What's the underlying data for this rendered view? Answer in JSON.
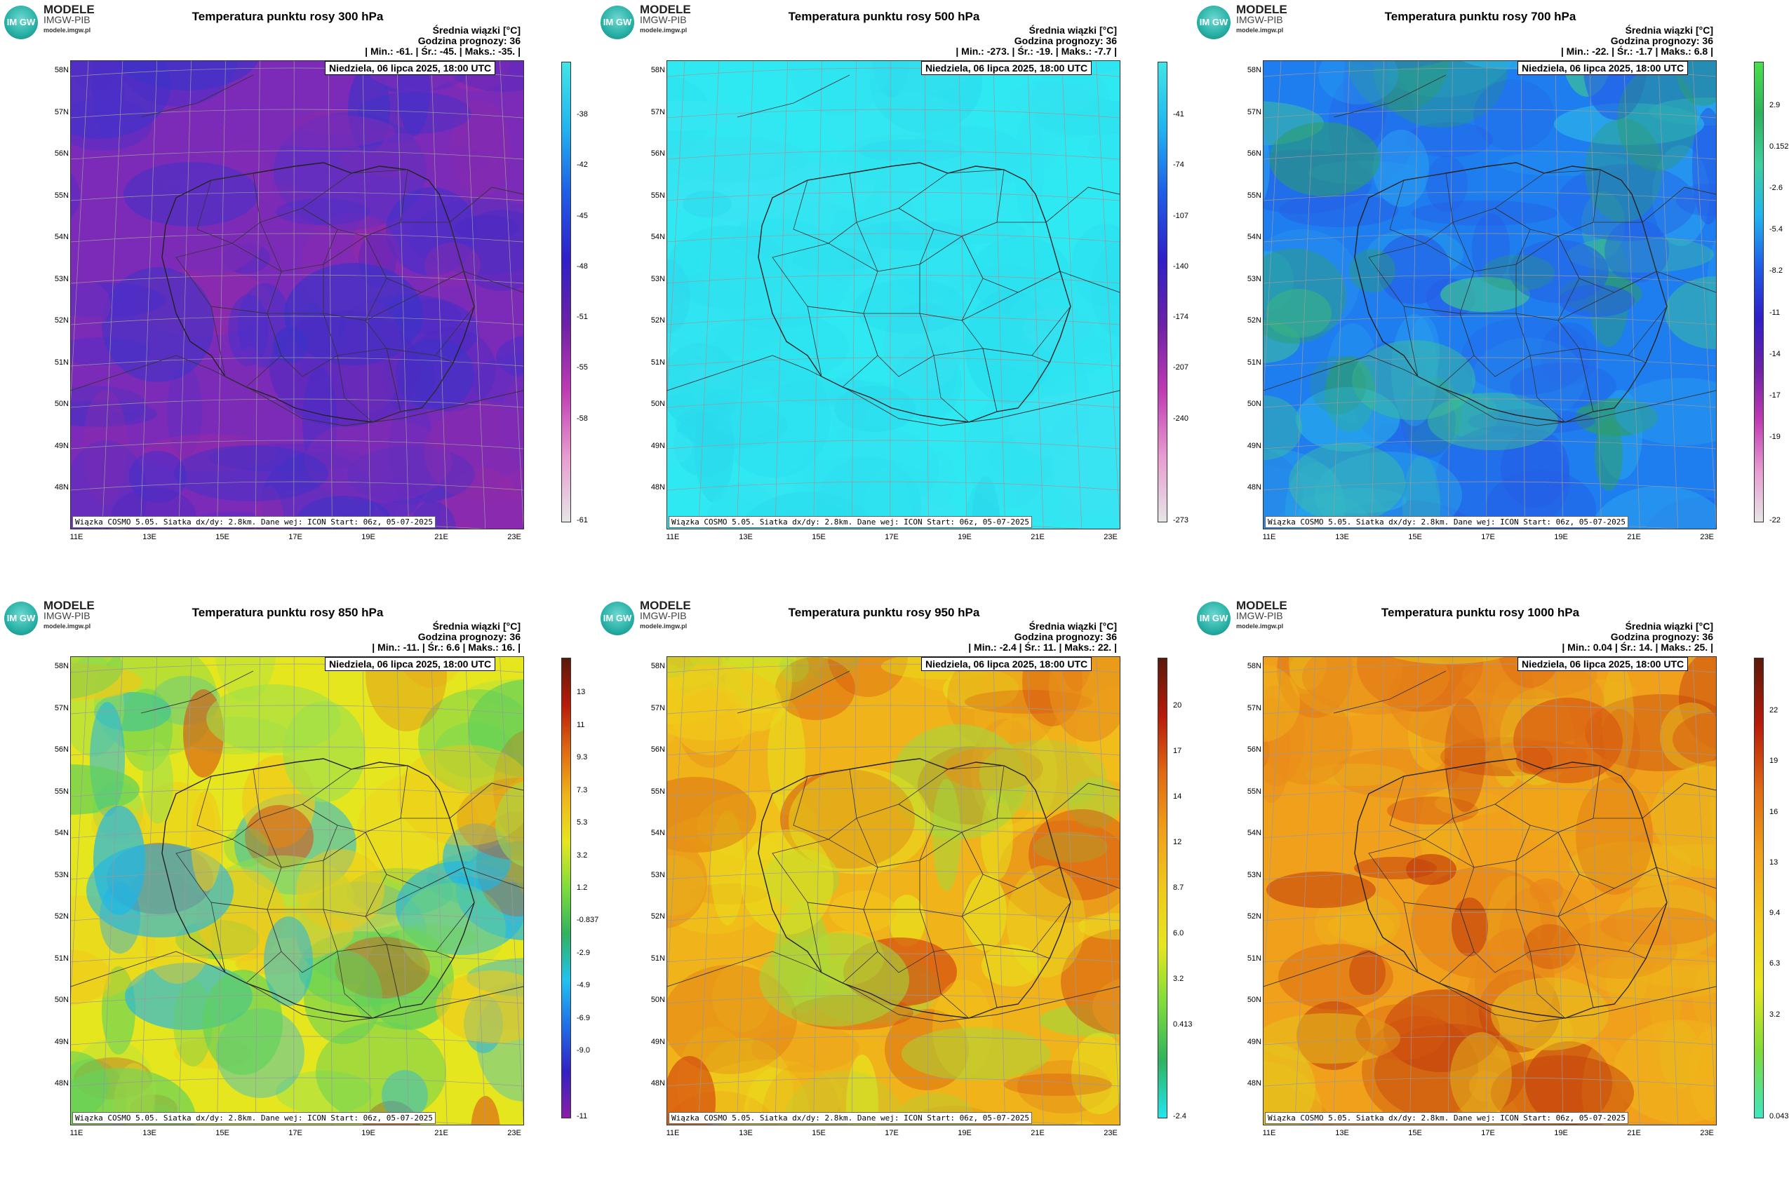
{
  "logo": {
    "line1": "MODELE",
    "line2": "IMGW-PIB",
    "line3": "modele.imgw.pl",
    "badge": "IM GW"
  },
  "common": {
    "info_line1": "Średnia wiązki [°C]",
    "info_line2": "Godzina prognozy: 36",
    "date": "Niedziela, 06 lipca 2025, 18:00 UTC",
    "footer": "Wiązka COSMO 5.05. Siatka dx/dy: 2.8km. Dane wej: ICON Start: 06z, 05-07-2025",
    "lat_labels": [
      "58N",
      "57N",
      "56N",
      "55N",
      "54N",
      "53N",
      "52N",
      "51N",
      "50N",
      "49N",
      "48N"
    ],
    "lon_labels": [
      "11E",
      "13E",
      "15E",
      "17E",
      "19E",
      "21E",
      "23E"
    ]
  },
  "panels": [
    {
      "title": "Temperatura punktu rosy 300 hPa",
      "stats": "| Min.:   -61. | Śr.:   -45. | Maks.:  -35. |",
      "ticks": [
        "-38",
        "-42",
        "-45",
        "-48",
        "-51",
        "-55",
        "-58",
        "-61"
      ],
      "palette": [
        "#7b2bb8",
        "#4a2ec9",
        "#3b33c9",
        "#4b2ac2",
        "#7d2cb6",
        "#962aa8"
      ],
      "colorbar": [
        "#e6e6e6",
        "#e89bd1",
        "#c03ab3",
        "#6d21a8",
        "#2f1fc9",
        "#1f5de8",
        "#21b4f0",
        "#3fe6e6"
      ]
    },
    {
      "title": "Temperatura punktu rosy 500 hPa",
      "stats": "| Min.:  -273. | Śr.:   -19. | Maks.:  -7.7 |",
      "ticks": [
        "-41",
        "-74",
        "-107",
        "-140",
        "-174",
        "-207",
        "-240",
        "-273"
      ],
      "palette": [
        "#2ee8f2",
        "#36e0ef",
        "#2bdbee",
        "#3ae4f2",
        "#30e2f0",
        "#2ad8ec"
      ],
      "colorbar": [
        "#e6e6e6",
        "#e89bd1",
        "#c03ab3",
        "#6d21a8",
        "#2f1fc9",
        "#1f5de8",
        "#21b4f0",
        "#3fe6e6"
      ]
    },
    {
      "title": "Temperatura punktu rosy 700 hPa",
      "stats": "| Min.:   -22. | Śr.:   -1.7 | Maks.:   6.8 |",
      "ticks": [
        "2.9",
        "0.152",
        "-2.6",
        "-5.4",
        "-8.2",
        "-11",
        "-14",
        "-17",
        "-19",
        "-22"
      ],
      "palette": [
        "#1e7ef0",
        "#2aa0ef",
        "#2560e6",
        "#2bb7e8",
        "#3ec494",
        "#2d9c6a"
      ],
      "colorbar": [
        "#e6e6e6",
        "#e89bd1",
        "#c03ab3",
        "#6d21a8",
        "#2f1fc9",
        "#1f5de8",
        "#21b4f0",
        "#3fd0a0",
        "#2fb35e",
        "#49e04c"
      ]
    },
    {
      "title": "Temperatura punktu rosy 850 hPa",
      "stats": "| Min.:   -11. | Śr.:    6.6 | Maks.:   16. |",
      "ticks": [
        "13",
        "11",
        "9.3",
        "7.3",
        "5.3",
        "3.2",
        "1.2",
        "-0.837",
        "-2.9",
        "-4.9",
        "-6.9",
        "-9.0",
        "-11"
      ],
      "palette": [
        "#e6e61e",
        "#9fe04a",
        "#5fd15a",
        "#f0c81a",
        "#d94a12",
        "#1fb6e8"
      ],
      "colorbar": [
        "#8a1fa6",
        "#3320c4",
        "#1f6fe8",
        "#21c2f0",
        "#2fb35e",
        "#7fdc3a",
        "#e6e61e",
        "#f0b41a",
        "#e06a12",
        "#b81a0a",
        "#5a1a0a"
      ]
    },
    {
      "title": "Temperatura punktu rosy 950 hPa",
      "stats": "| Min.:   -2.4 | Śr.:    11. | Maks.:   22. |",
      "ticks": [
        "20",
        "17",
        "14",
        "12",
        "8.7",
        "6.0",
        "3.2",
        "0.413",
        "-2.4"
      ],
      "palette": [
        "#f0b41a",
        "#f2c81a",
        "#e6e61e",
        "#e8901a",
        "#d4480e",
        "#a6d63a"
      ],
      "colorbar": [
        "#21e6f0",
        "#2fb35e",
        "#7fdc3a",
        "#e6e61e",
        "#f0c81a",
        "#f0a01a",
        "#e06a12",
        "#b81a0a",
        "#5a1a0a"
      ]
    },
    {
      "title": "Temperatura punktu rosy 1000 hPa",
      "stats": "| Min.:   0.04 | Śr.:    14. | Maks.:   25. |",
      "ticks": [
        "22",
        "19",
        "16",
        "13",
        "9.4",
        "6.3",
        "3.2",
        "0.043"
      ],
      "palette": [
        "#f0a01a",
        "#e8881a",
        "#f0b41a",
        "#d85a12",
        "#e6c41e",
        "#c4400c"
      ],
      "colorbar": [
        "#3fe6c0",
        "#7fdc3a",
        "#e6e61e",
        "#f0c81a",
        "#f0a01a",
        "#e06a12",
        "#b81a0a",
        "#5a1a0a"
      ]
    }
  ]
}
